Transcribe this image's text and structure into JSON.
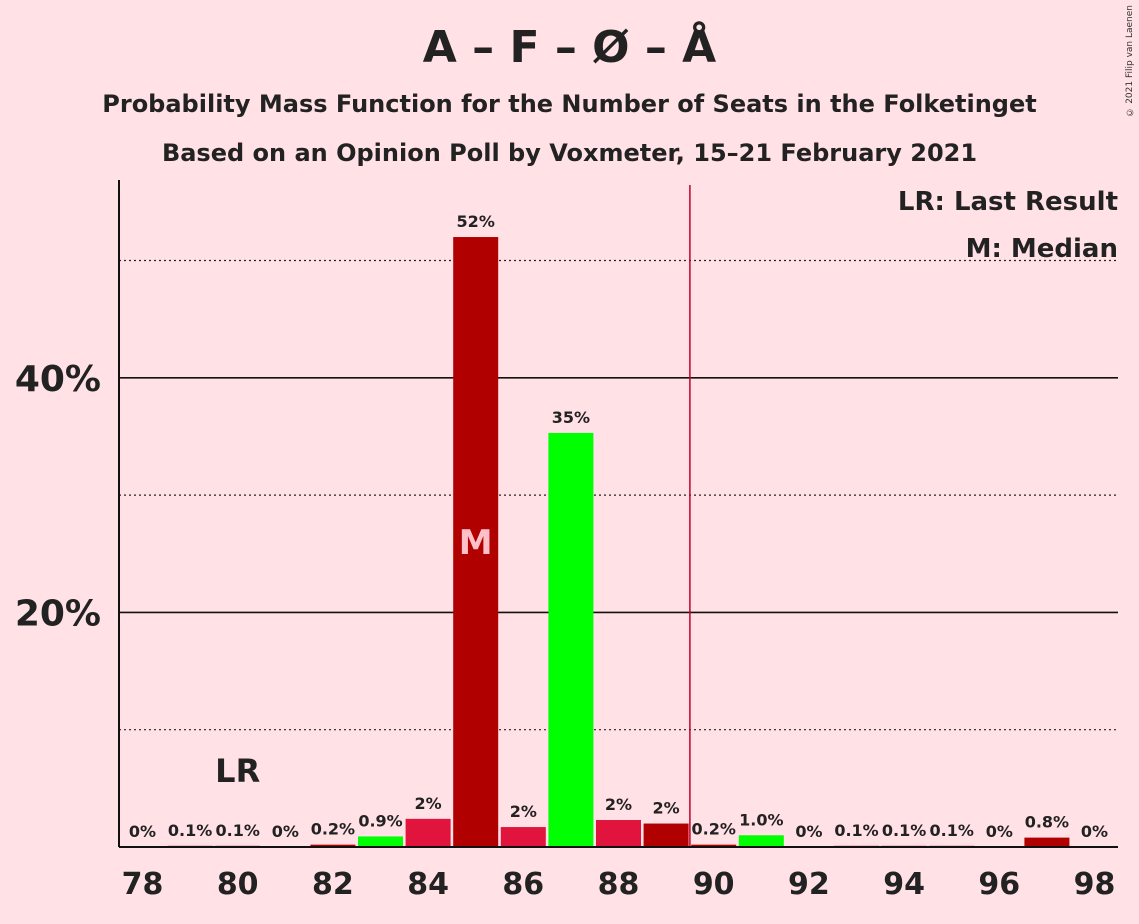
{
  "title": "A – F – Ø – Å",
  "subtitle1": "Probability Mass Function for the Number of Seats in the Folketinget",
  "subtitle2": "Based on an Opinion Poll by Voxmeter, 15–21 February 2021",
  "copyright": "© 2021 Filip van Laenen",
  "legend": {
    "lr": "LR: Last Result",
    "m": "M: Median"
  },
  "markers": {
    "lr_text": "LR",
    "median_text": "M"
  },
  "colors": {
    "background": "#ffe1e6",
    "dark_red": "#b00000",
    "crimson": "#e0143c",
    "green": "#00ff00",
    "majority_line": "#c0002a"
  },
  "chart_data": {
    "type": "bar",
    "x": [
      78,
      79,
      80,
      81,
      82,
      83,
      84,
      85,
      86,
      87,
      88,
      89,
      90,
      91,
      92,
      93,
      94,
      95,
      96,
      97,
      98
    ],
    "values": [
      0,
      0.1,
      0.1,
      0,
      0.2,
      0.9,
      2.4,
      52.0,
      1.7,
      35.3,
      2.3,
      2.0,
      0.2,
      1.0,
      0,
      0.1,
      0.1,
      0.1,
      0,
      0.8,
      0
    ],
    "labels": [
      "0%",
      "0.1%",
      "0.1%",
      "0%",
      "0.2%",
      "0.9%",
      "2%",
      "52%",
      "2%",
      "35%",
      "2%",
      "2%",
      "0.2%",
      "1.0%",
      "0%",
      "0.1%",
      "0.1%",
      "0.1%",
      "0%",
      "0.8%",
      "0%"
    ],
    "bar_colors": [
      "dark_red",
      "dark_red",
      "dark_red",
      "dark_red",
      "dark_red",
      "green",
      "crimson",
      "dark_red",
      "crimson",
      "green",
      "crimson",
      "dark_red",
      "dark_red",
      "green",
      "dark_red",
      "dark_red",
      "dark_red",
      "dark_red",
      "dark_red",
      "dark_red",
      "dark_red"
    ],
    "x_ticks": [
      78,
      80,
      82,
      84,
      86,
      88,
      90,
      92,
      94,
      96,
      98
    ],
    "y_ticks_major": [
      20,
      40
    ],
    "y_tick_labels": [
      "20%",
      "40%"
    ],
    "y_ticks_minor": [
      10,
      30,
      50
    ],
    "ylim": [
      0,
      57
    ],
    "last_result": 80,
    "median": 85,
    "majority_line": 89.5
  }
}
